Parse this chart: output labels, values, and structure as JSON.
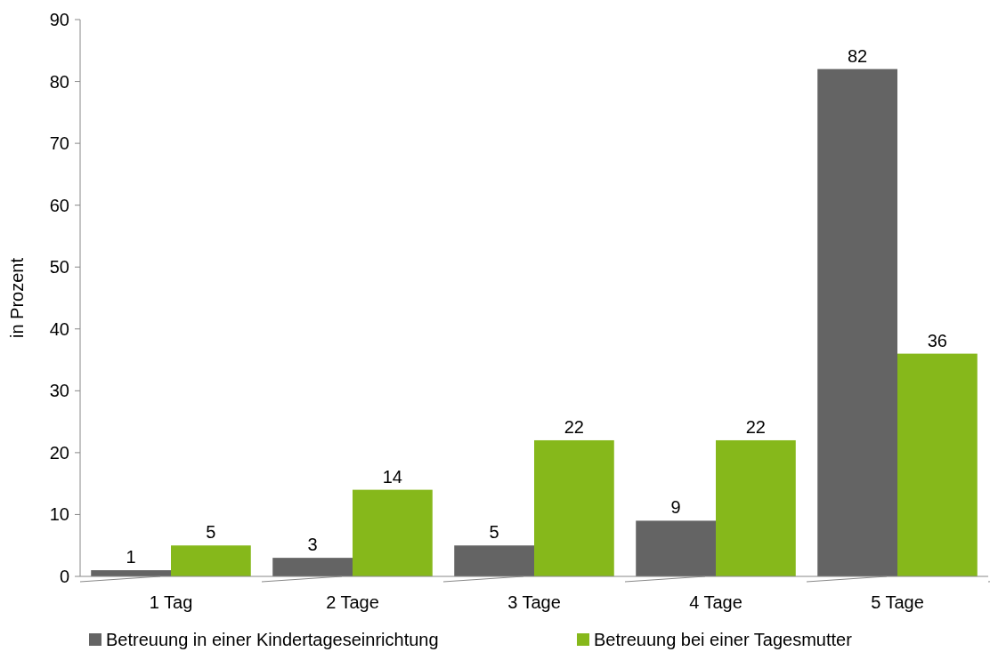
{
  "chart_data": {
    "type": "bar",
    "ylabel": "in Prozent",
    "categories": [
      "1 Tag",
      "2 Tage",
      "3 Tage",
      "4 Tage",
      "5 Tage"
    ],
    "series": [
      {
        "name": "Betreuung in einer Kindertageseinrichtung",
        "color": "#646464",
        "values": [
          1,
          3,
          5,
          9,
          82
        ]
      },
      {
        "name": "Betreuung bei einer Tagesmutter",
        "color": "#86b81b",
        "values": [
          5,
          14,
          22,
          22,
          36
        ]
      }
    ],
    "ylim": [
      0,
      90
    ],
    "yticks": [
      0,
      10,
      20,
      30,
      40,
      50,
      60,
      70,
      80,
      90
    ],
    "grid": false,
    "legend": "bottom",
    "data_labels": true
  }
}
